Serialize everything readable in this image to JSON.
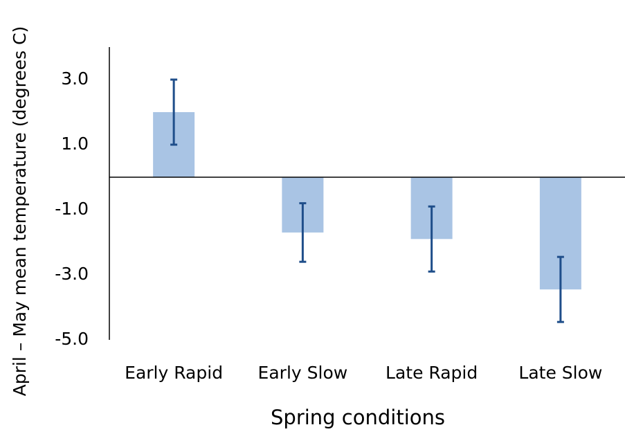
{
  "chart_data": {
    "type": "bar",
    "x_label": "Spring conditions",
    "y_label": "April – May mean temperature (degrees C)",
    "categories": [
      "Early Rapid",
      "Early Slow",
      "Late Rapid",
      "Late Slow"
    ],
    "values": [
      2.0,
      -1.7,
      -1.9,
      -3.45
    ],
    "errors": [
      1.0,
      0.9,
      1.0,
      1.0
    ],
    "color": "#a9c4e4",
    "error_color": "#1f4e8a",
    "ylim": [
      -5,
      4
    ],
    "yticks": [
      {
        "value": 3,
        "label": "3.0"
      },
      {
        "value": 1,
        "label": "1.0"
      },
      {
        "value": -1,
        "label": "-1.0"
      },
      {
        "value": -3,
        "label": "-3.0"
      },
      {
        "value": -5,
        "label": "-5.0"
      }
    ],
    "grid": false
  }
}
